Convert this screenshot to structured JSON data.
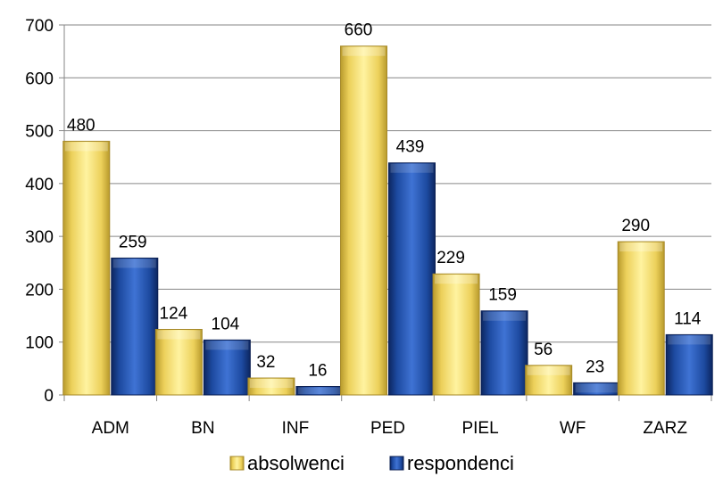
{
  "chart_data": {
    "type": "bar",
    "categories": [
      "ADM",
      "BN",
      "INF",
      "PED",
      "PIEL",
      "WF",
      "ZARZ"
    ],
    "series": [
      {
        "name": "absolwenci",
        "values": [
          480,
          124,
          32,
          660,
          229,
          56,
          290
        ],
        "color": "#f2d147"
      },
      {
        "name": "respondenci",
        "values": [
          259,
          104,
          16,
          439,
          159,
          23,
          114
        ],
        "color": "#1f4fa8"
      }
    ],
    "ylim": [
      0,
      700
    ],
    "yticks": [
      0,
      100,
      200,
      300,
      400,
      500,
      600,
      700
    ],
    "grid": true,
    "legend": "bottom",
    "data_labels": true
  }
}
